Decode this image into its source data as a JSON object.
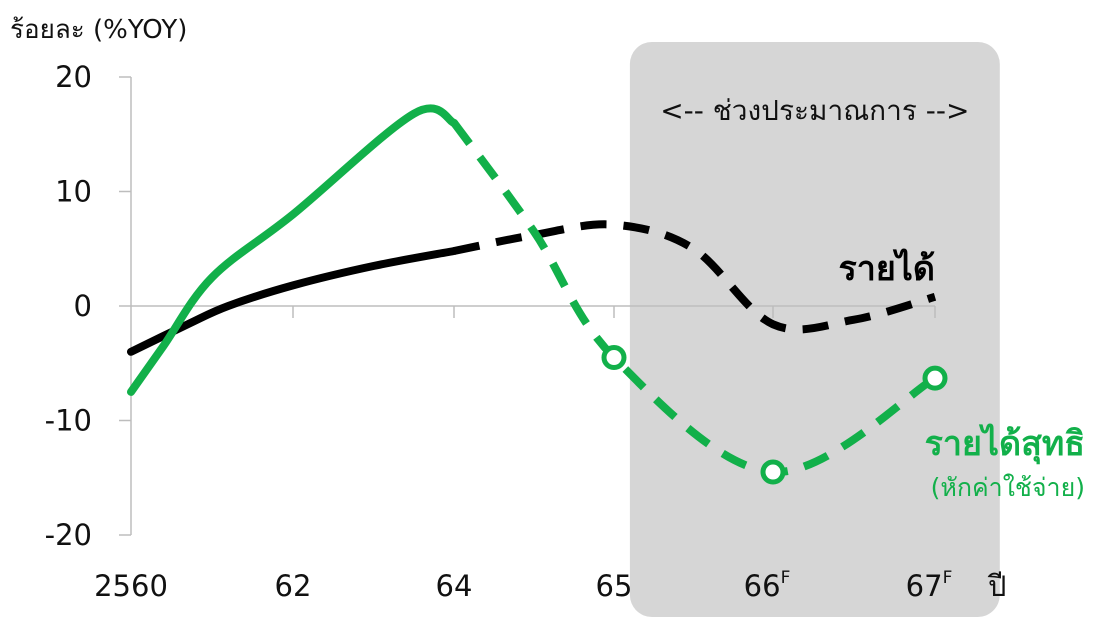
{
  "chart_data": {
    "type": "line",
    "ylabel": "ร้อยละ (%YOY)",
    "xlabel": "ปี",
    "ylim": [
      -20,
      20
    ],
    "yticks": [
      20,
      10,
      0,
      -10,
      -20
    ],
    "x": [
      2560,
      2561,
      2562,
      2563,
      2564,
      2565,
      2566,
      2567
    ],
    "x_tick_labels": [
      {
        "x": 2560,
        "label": "2560",
        "sup": ""
      },
      {
        "x": 2562,
        "label": "62",
        "sup": ""
      },
      {
        "x": 2564,
        "label": "64",
        "sup": ""
      },
      {
        "x": 2565,
        "label": "65",
        "sup": ""
      },
      {
        "x": 2566,
        "label": "66",
        "sup": "F"
      },
      {
        "x": 2567,
        "label": "67",
        "sup": "F"
      }
    ],
    "forecast_region": {
      "start": 2565.1,
      "end": 2567.4,
      "label": "<-- ช่วงประมาณการ -->"
    },
    "series": [
      {
        "name": "รายได้",
        "sublabel": "",
        "color": "#000000",
        "actual": [
          [
            2560,
            -4.0
          ],
          [
            2560.7,
            -1.6
          ],
          [
            2561.2,
            0.0
          ],
          [
            2562,
            1.8
          ],
          [
            2563,
            3.5
          ],
          [
            2564,
            4.8
          ]
        ],
        "forecast": [
          [
            2564,
            4.8
          ],
          [
            2564.5,
            6.2
          ],
          [
            2565,
            7.1
          ],
          [
            2565.5,
            5.0
          ],
          [
            2566,
            -1.6
          ],
          [
            2566.5,
            -1.2
          ],
          [
            2567,
            0.8
          ]
        ],
        "markers": []
      },
      {
        "name": "รายได้สุทธิ",
        "sublabel": "(หักค่าใช้จ่าย)",
        "color": "#12b04a",
        "actual": [
          [
            2560,
            -7.5
          ],
          [
            2560.4,
            -3.5
          ],
          [
            2561.0,
            2.5
          ],
          [
            2562,
            8.0
          ],
          [
            2563.5,
            16.8
          ],
          [
            2564,
            16.0
          ]
        ],
        "forecast": [
          [
            2564,
            16.0
          ],
          [
            2564.5,
            6.5
          ],
          [
            2565,
            -4.5
          ],
          [
            2566,
            -14.5
          ],
          [
            2567,
            -6.3
          ]
        ],
        "markers": [
          [
            2565,
            -4.5
          ],
          [
            2566,
            -14.5
          ],
          [
            2567,
            -6.3
          ]
        ]
      }
    ]
  }
}
